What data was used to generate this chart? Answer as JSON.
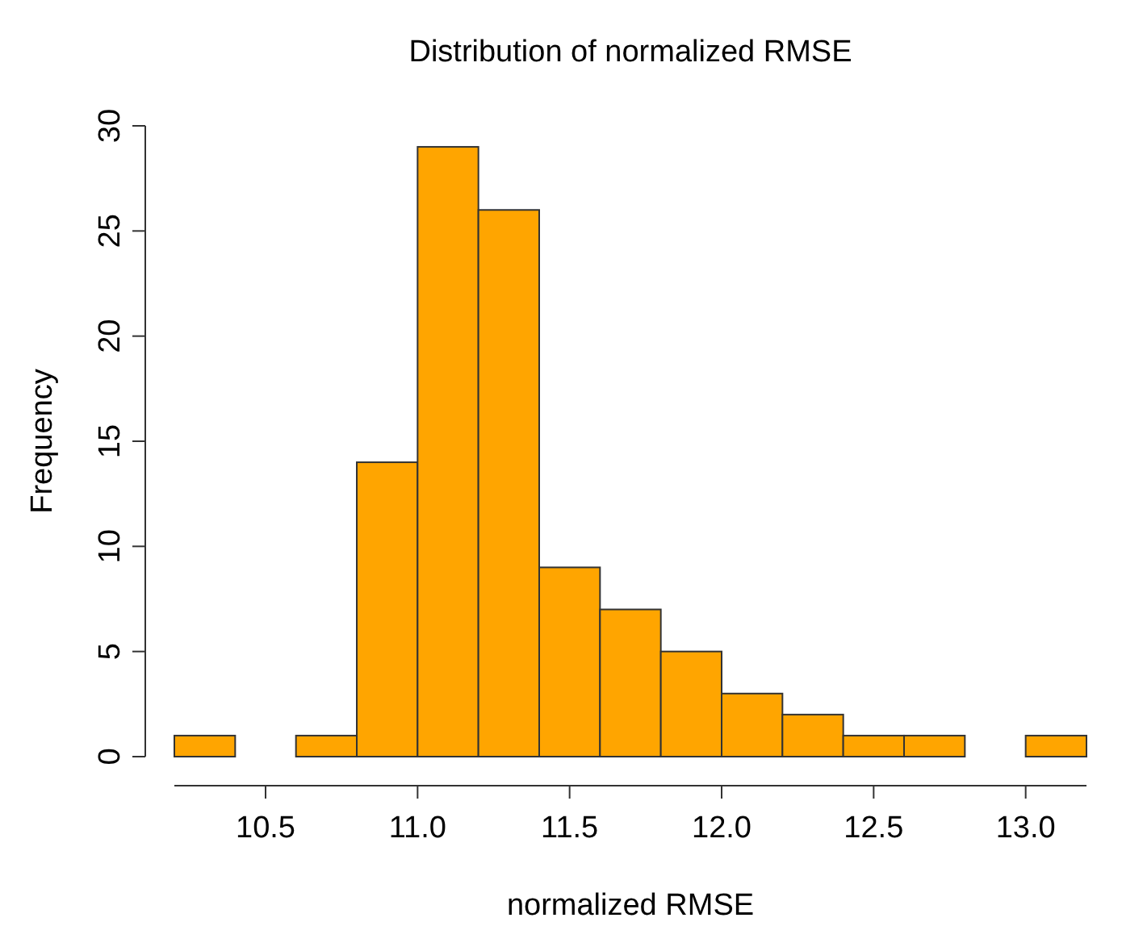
{
  "chart_data": {
    "type": "histogram",
    "title": "Distribution of normalized RMSE",
    "xlabel": "normalized RMSE",
    "ylabel": "Frequency",
    "bins": [
      10.2,
      10.4,
      10.6,
      10.8,
      11.0,
      11.2,
      11.4,
      11.6,
      11.8,
      12.0,
      12.2,
      12.4,
      12.6,
      12.8,
      13.0,
      13.2
    ],
    "values": [
      1,
      0,
      1,
      14,
      29,
      26,
      9,
      7,
      5,
      3,
      2,
      1,
      1,
      0,
      1
    ],
    "color": "#ffa500",
    "xlim": [
      10.2,
      13.2
    ],
    "xticks": [
      {
        "value": 10.5,
        "label": "10.5"
      },
      {
        "value": 11,
        "label": "11.0"
      },
      {
        "value": 11.5,
        "label": "11.5"
      },
      {
        "value": 12,
        "label": "12.0"
      },
      {
        "value": 12.5,
        "label": "12.5"
      },
      {
        "value": 13,
        "label": "13.0"
      }
    ],
    "ylim": [
      0,
      30
    ],
    "yticks": [
      0,
      5,
      10,
      15,
      20,
      25,
      30
    ],
    "grid": false
  }
}
